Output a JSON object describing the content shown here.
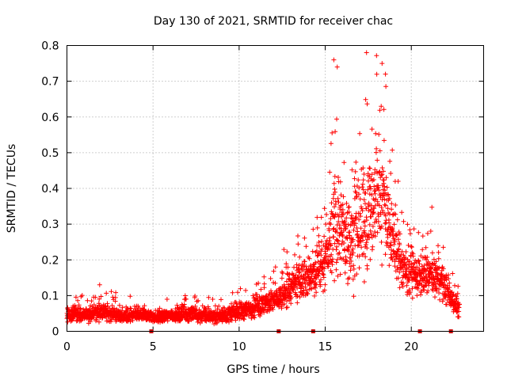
{
  "chart_data": {
    "type": "scatter",
    "title": "Day 130 of 2021, SRMTID for receiver chac",
    "xlabel": "GPS time / hours",
    "ylabel": "SRMTID / TECUs",
    "xlim": [
      0,
      24.2
    ],
    "ylim": [
      0,
      0.8
    ],
    "xticks": [
      "0",
      "5",
      "10",
      "15",
      "20"
    ],
    "yticks": [
      "0",
      "0.1",
      "0.2",
      "0.3",
      "0.4",
      "0.5",
      "0.6",
      "0.7",
      "0.8"
    ],
    "grid": true,
    "legend": "none",
    "marker": "+",
    "color": "#ff0000",
    "envelope": {
      "x": [
        0,
        0.5,
        1,
        1.5,
        2,
        2.5,
        3,
        3.5,
        4,
        4.5,
        5,
        5.5,
        6,
        6.5,
        7,
        7.5,
        8,
        8.5,
        9,
        9.5,
        10,
        10.5,
        11,
        11.5,
        12,
        12.5,
        13,
        13.5,
        14,
        14.5,
        15,
        15.3,
        15.6,
        16,
        16.5,
        17,
        17.5,
        18,
        18.5,
        19,
        19.5,
        20,
        20.5,
        21,
        21.5,
        22,
        22.5,
        22.8
      ],
      "median": [
        0.045,
        0.05,
        0.045,
        0.05,
        0.055,
        0.05,
        0.045,
        0.04,
        0.045,
        0.045,
        0.04,
        0.04,
        0.045,
        0.045,
        0.05,
        0.045,
        0.045,
        0.04,
        0.045,
        0.05,
        0.055,
        0.06,
        0.07,
        0.075,
        0.085,
        0.1,
        0.12,
        0.14,
        0.15,
        0.16,
        0.2,
        0.24,
        0.3,
        0.28,
        0.25,
        0.3,
        0.33,
        0.38,
        0.35,
        0.25,
        0.18,
        0.16,
        0.15,
        0.16,
        0.15,
        0.12,
        0.08,
        0.06
      ],
      "spread": [
        0.015,
        0.02,
        0.015,
        0.02,
        0.02,
        0.02,
        0.015,
        0.015,
        0.015,
        0.015,
        0.012,
        0.015,
        0.015,
        0.018,
        0.02,
        0.018,
        0.018,
        0.015,
        0.018,
        0.02,
        0.025,
        0.025,
        0.03,
        0.03,
        0.03,
        0.035,
        0.04,
        0.045,
        0.05,
        0.05,
        0.06,
        0.08,
        0.15,
        0.12,
        0.1,
        0.14,
        0.15,
        0.14,
        0.12,
        0.08,
        0.06,
        0.05,
        0.05,
        0.05,
        0.05,
        0.04,
        0.025,
        0.02
      ]
    },
    "samples_per_hour": 120,
    "x_end": 22.8,
    "peaks": [
      {
        "x": 15.5,
        "y": 0.76
      },
      {
        "x": 15.7,
        "y": 0.74
      },
      {
        "x": 17.4,
        "y": 0.78
      },
      {
        "x": 18.3,
        "y": 0.75
      },
      {
        "x": 18.5,
        "y": 0.72
      },
      {
        "x": 1.9,
        "y": 0.13
      }
    ],
    "axis_markers_x": [
      4.9,
      12.3,
      14.3,
      20.5,
      22.3
    ]
  }
}
